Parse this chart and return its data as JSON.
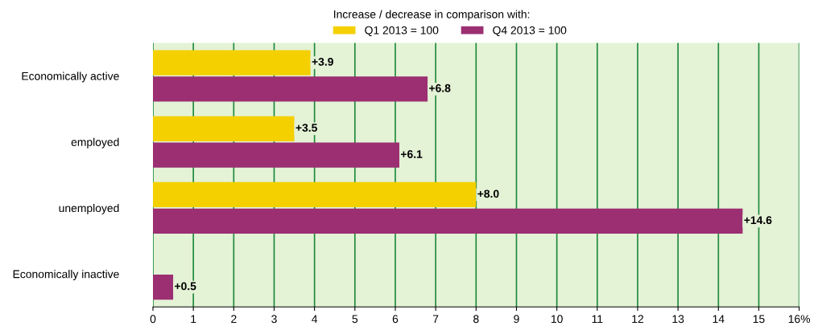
{
  "chart_data": {
    "type": "bar",
    "orientation": "horizontal",
    "legend_title": "Increase / decrease in comparison with:",
    "legend": "top",
    "categories": [
      "Economically active",
      "employed",
      "unemployed",
      "Economically inactive"
    ],
    "series": [
      {
        "name": "Q1 2013 = 100",
        "color": "#f5d000",
        "values": [
          3.9,
          3.5,
          8.0,
          null
        ],
        "value_labels": [
          "+3.9",
          "+3.5",
          "+8.0",
          null
        ]
      },
      {
        "name": "Q4 2013 = 100",
        "color": "#9b2f72",
        "values": [
          6.8,
          6.1,
          14.6,
          0.5
        ],
        "value_labels": [
          "+6.8",
          "+6.1",
          "+14.6",
          "+0.5"
        ]
      }
    ],
    "xlim": [
      0,
      16
    ],
    "xticks": [
      0,
      1,
      2,
      3,
      4,
      5,
      6,
      7,
      8,
      9,
      10,
      11,
      12,
      13,
      14,
      15,
      {
        "value": 16,
        "label": "16%"
      }
    ],
    "grid": "x"
  }
}
